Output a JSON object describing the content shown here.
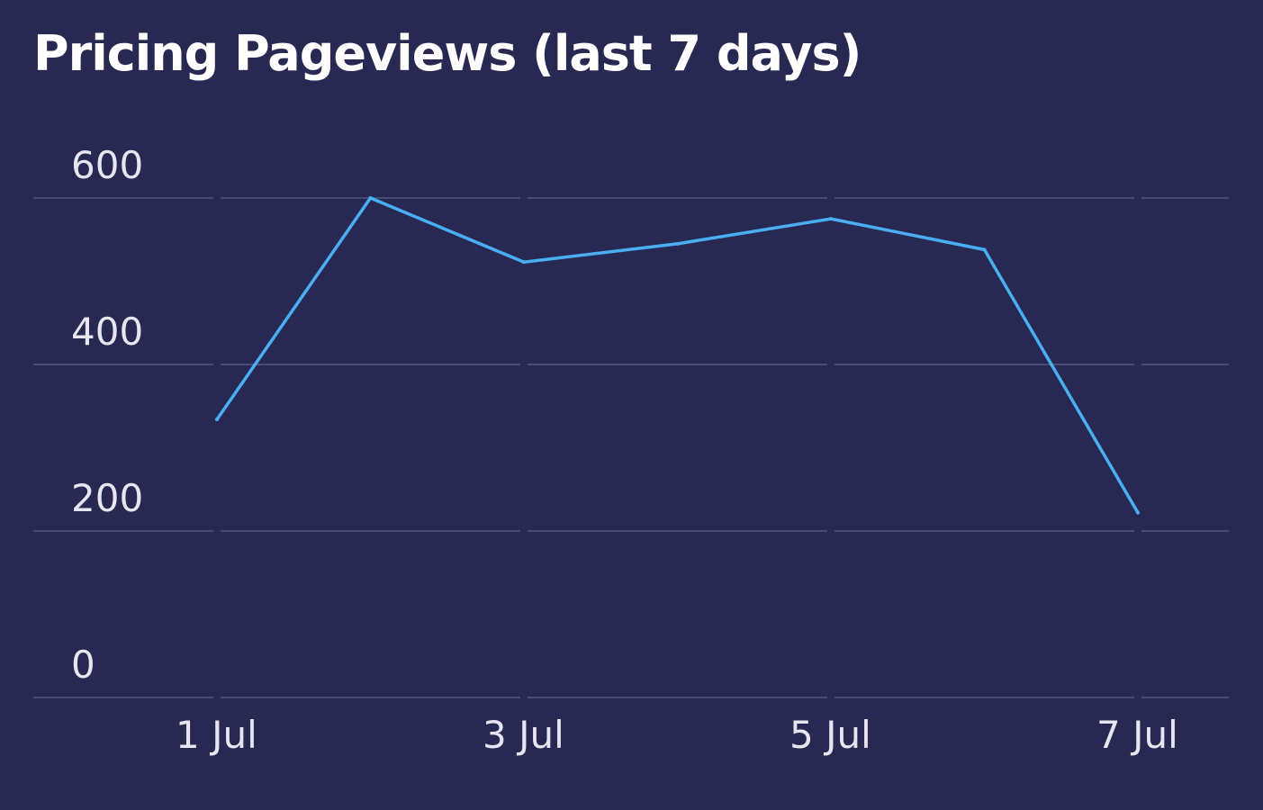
{
  "chart_data": {
    "type": "line",
    "title": "Pricing Pageviews (last 7 days)",
    "xlabel": "",
    "ylabel": "",
    "x": [
      "1 Jul",
      "2 Jul",
      "3 Jul",
      "4 Jul",
      "5 Jul",
      "6 Jul",
      "7 Jul"
    ],
    "x_tick_labels": [
      "1 Jul",
      "3 Jul",
      "5 Jul",
      "7 Jul"
    ],
    "y_ticks": [
      0,
      200,
      400,
      600
    ],
    "ylim": [
      0,
      600
    ],
    "grid": true,
    "legend": "none",
    "series": [
      {
        "name": "Pricing Pageviews",
        "values": [
          334,
          600,
          523,
          545,
          575,
          538,
          222
        ]
      }
    ],
    "colors": {
      "background": "#272952",
      "line": "#4aaff2",
      "grid": "#474a72",
      "text": "#e6e6f0",
      "title": "#ffffff"
    }
  }
}
